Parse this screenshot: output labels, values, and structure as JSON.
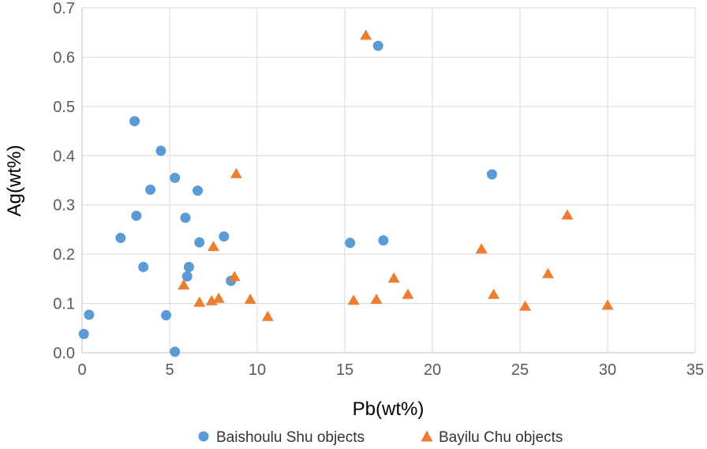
{
  "chart_data": {
    "type": "scatter",
    "xlabel": "Pb(wt%)",
    "ylabel": "Ag(wt%)",
    "xlim": [
      0,
      35
    ],
    "ylim": [
      0,
      0.7
    ],
    "x_ticks": [
      0,
      5,
      10,
      15,
      20,
      25,
      30,
      35
    ],
    "y_ticks": [
      "0.0",
      "0.1",
      "0.2",
      "0.3",
      "0.4",
      "0.5",
      "0.6",
      "0.7"
    ],
    "grid": "vertical-and-horizontal",
    "legend_position": "bottom",
    "series": [
      {
        "name": "Baishoulu Shu objects",
        "marker": "circle",
        "color": "#5b9bd5",
        "points": [
          [
            0.1,
            0.038
          ],
          [
            0.4,
            0.077
          ],
          [
            2.2,
            0.233
          ],
          [
            3.0,
            0.47
          ],
          [
            3.1,
            0.278
          ],
          [
            3.5,
            0.174
          ],
          [
            3.9,
            0.331
          ],
          [
            4.5,
            0.41
          ],
          [
            4.8,
            0.076
          ],
          [
            5.3,
            0.355
          ],
          [
            5.3,
            0.002
          ],
          [
            5.9,
            0.274
          ],
          [
            6.0,
            0.155
          ],
          [
            6.1,
            0.174
          ],
          [
            6.6,
            0.329
          ],
          [
            6.7,
            0.224
          ],
          [
            8.1,
            0.236
          ],
          [
            8.5,
            0.146
          ],
          [
            15.3,
            0.223
          ],
          [
            16.9,
            0.623
          ],
          [
            17.2,
            0.228
          ],
          [
            23.4,
            0.362
          ]
        ]
      },
      {
        "name": "Bayilu Chu objects",
        "marker": "triangle",
        "color": "#ed7d31",
        "points": [
          [
            5.8,
            0.138
          ],
          [
            6.7,
            0.103
          ],
          [
            7.4,
            0.106
          ],
          [
            7.5,
            0.216
          ],
          [
            7.8,
            0.111
          ],
          [
            8.7,
            0.155
          ],
          [
            8.8,
            0.364
          ],
          [
            9.6,
            0.109
          ],
          [
            10.6,
            0.074
          ],
          [
            15.5,
            0.107
          ],
          [
            16.2,
            0.645
          ],
          [
            16.8,
            0.109
          ],
          [
            17.8,
            0.152
          ],
          [
            18.6,
            0.119
          ],
          [
            22.8,
            0.211
          ],
          [
            23.5,
            0.119
          ],
          [
            25.3,
            0.095
          ],
          [
            26.6,
            0.161
          ],
          [
            27.7,
            0.28
          ],
          [
            30.0,
            0.097
          ]
        ]
      }
    ]
  }
}
